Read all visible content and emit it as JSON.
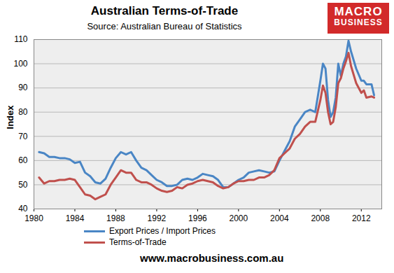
{
  "chart_data": {
    "type": "line",
    "title": "Australian Terms-of-Trade",
    "subtitle": "Source: Australian Bureau of Statistics",
    "logo_text": [
      "MACRO",
      "BUSINESS"
    ],
    "footer": "www.macrobusiness.com.au",
    "y_label": "Index",
    "x": [
      1980.5,
      1981,
      1981.5,
      1982,
      1982.5,
      1983,
      1983.5,
      1984,
      1984.5,
      1985,
      1985.5,
      1986,
      1986.5,
      1987,
      1987.5,
      1988,
      1988.5,
      1989,
      1989.5,
      1990,
      1990.5,
      1991,
      1991.5,
      1992,
      1992.5,
      1993,
      1993.5,
      1994,
      1994.5,
      1995,
      1995.5,
      1996,
      1996.5,
      1997,
      1997.5,
      1998,
      1998.5,
      1999,
      1999.5,
      2000,
      2000.5,
      2001,
      2001.5,
      2002,
      2002.5,
      2003,
      2003.5,
      2004,
      2004.5,
      2005,
      2005.5,
      2006,
      2006.5,
      2007,
      2007.5,
      2008,
      2008.25,
      2008.5,
      2008.75,
      2009,
      2009.25,
      2009.5,
      2009.75,
      2010,
      2010.25,
      2010.5,
      2010.75,
      2011,
      2011.5,
      2012,
      2012.25,
      2012.5,
      2013,
      2013.25
    ],
    "series": [
      {
        "name": "Export Prices / Import Prices",
        "color": "#4a86c5",
        "values": [
          63.5,
          63,
          61.5,
          61.5,
          61,
          61,
          60.5,
          59,
          59.5,
          55,
          53.5,
          51,
          50.5,
          52.5,
          57,
          61,
          63.5,
          62.5,
          63.5,
          60,
          57,
          56,
          54,
          52,
          51,
          49.5,
          49.5,
          50,
          52,
          52.5,
          52,
          53,
          54.5,
          54,
          53.5,
          52,
          49,
          49,
          50.5,
          52,
          53,
          55,
          55.5,
          56,
          55.5,
          55,
          55.5,
          60,
          64,
          68,
          74,
          77,
          80,
          81,
          80,
          93,
          100,
          98,
          85,
          78,
          80,
          86,
          100,
          95,
          100,
          103,
          109.5,
          105,
          98,
          93,
          93,
          91.5,
          91.5,
          87
        ]
      },
      {
        "name": "Terms-of-Trade",
        "color": "#c0504d",
        "values": [
          53,
          50.5,
          51.5,
          51.5,
          52,
          52,
          52.5,
          52,
          49,
          46,
          45.5,
          44,
          45,
          46,
          50,
          53,
          56,
          55,
          55,
          52,
          51,
          51,
          50,
          48.5,
          47.5,
          47,
          47.5,
          49,
          48.5,
          50,
          50.5,
          51.5,
          52,
          51.5,
          51,
          49.5,
          48.5,
          49,
          50.5,
          51.5,
          51.5,
          52,
          52,
          53,
          53,
          54,
          56,
          61,
          63,
          65,
          69,
          71,
          74,
          76,
          76,
          85,
          91,
          88,
          80,
          75,
          76,
          82,
          92,
          94,
          98,
          101,
          104.5,
          99,
          92,
          88,
          89,
          86,
          86.5,
          86
        ]
      }
    ],
    "xlim": [
      1980,
      2014
    ],
    "xticks": [
      1980,
      1984,
      1988,
      1992,
      1996,
      2000,
      2004,
      2008,
      2012
    ],
    "ylim": [
      40,
      110
    ],
    "yticks": [
      40,
      50,
      60,
      70,
      80,
      90,
      100,
      110
    ],
    "grid": true,
    "legend": "bottom"
  }
}
